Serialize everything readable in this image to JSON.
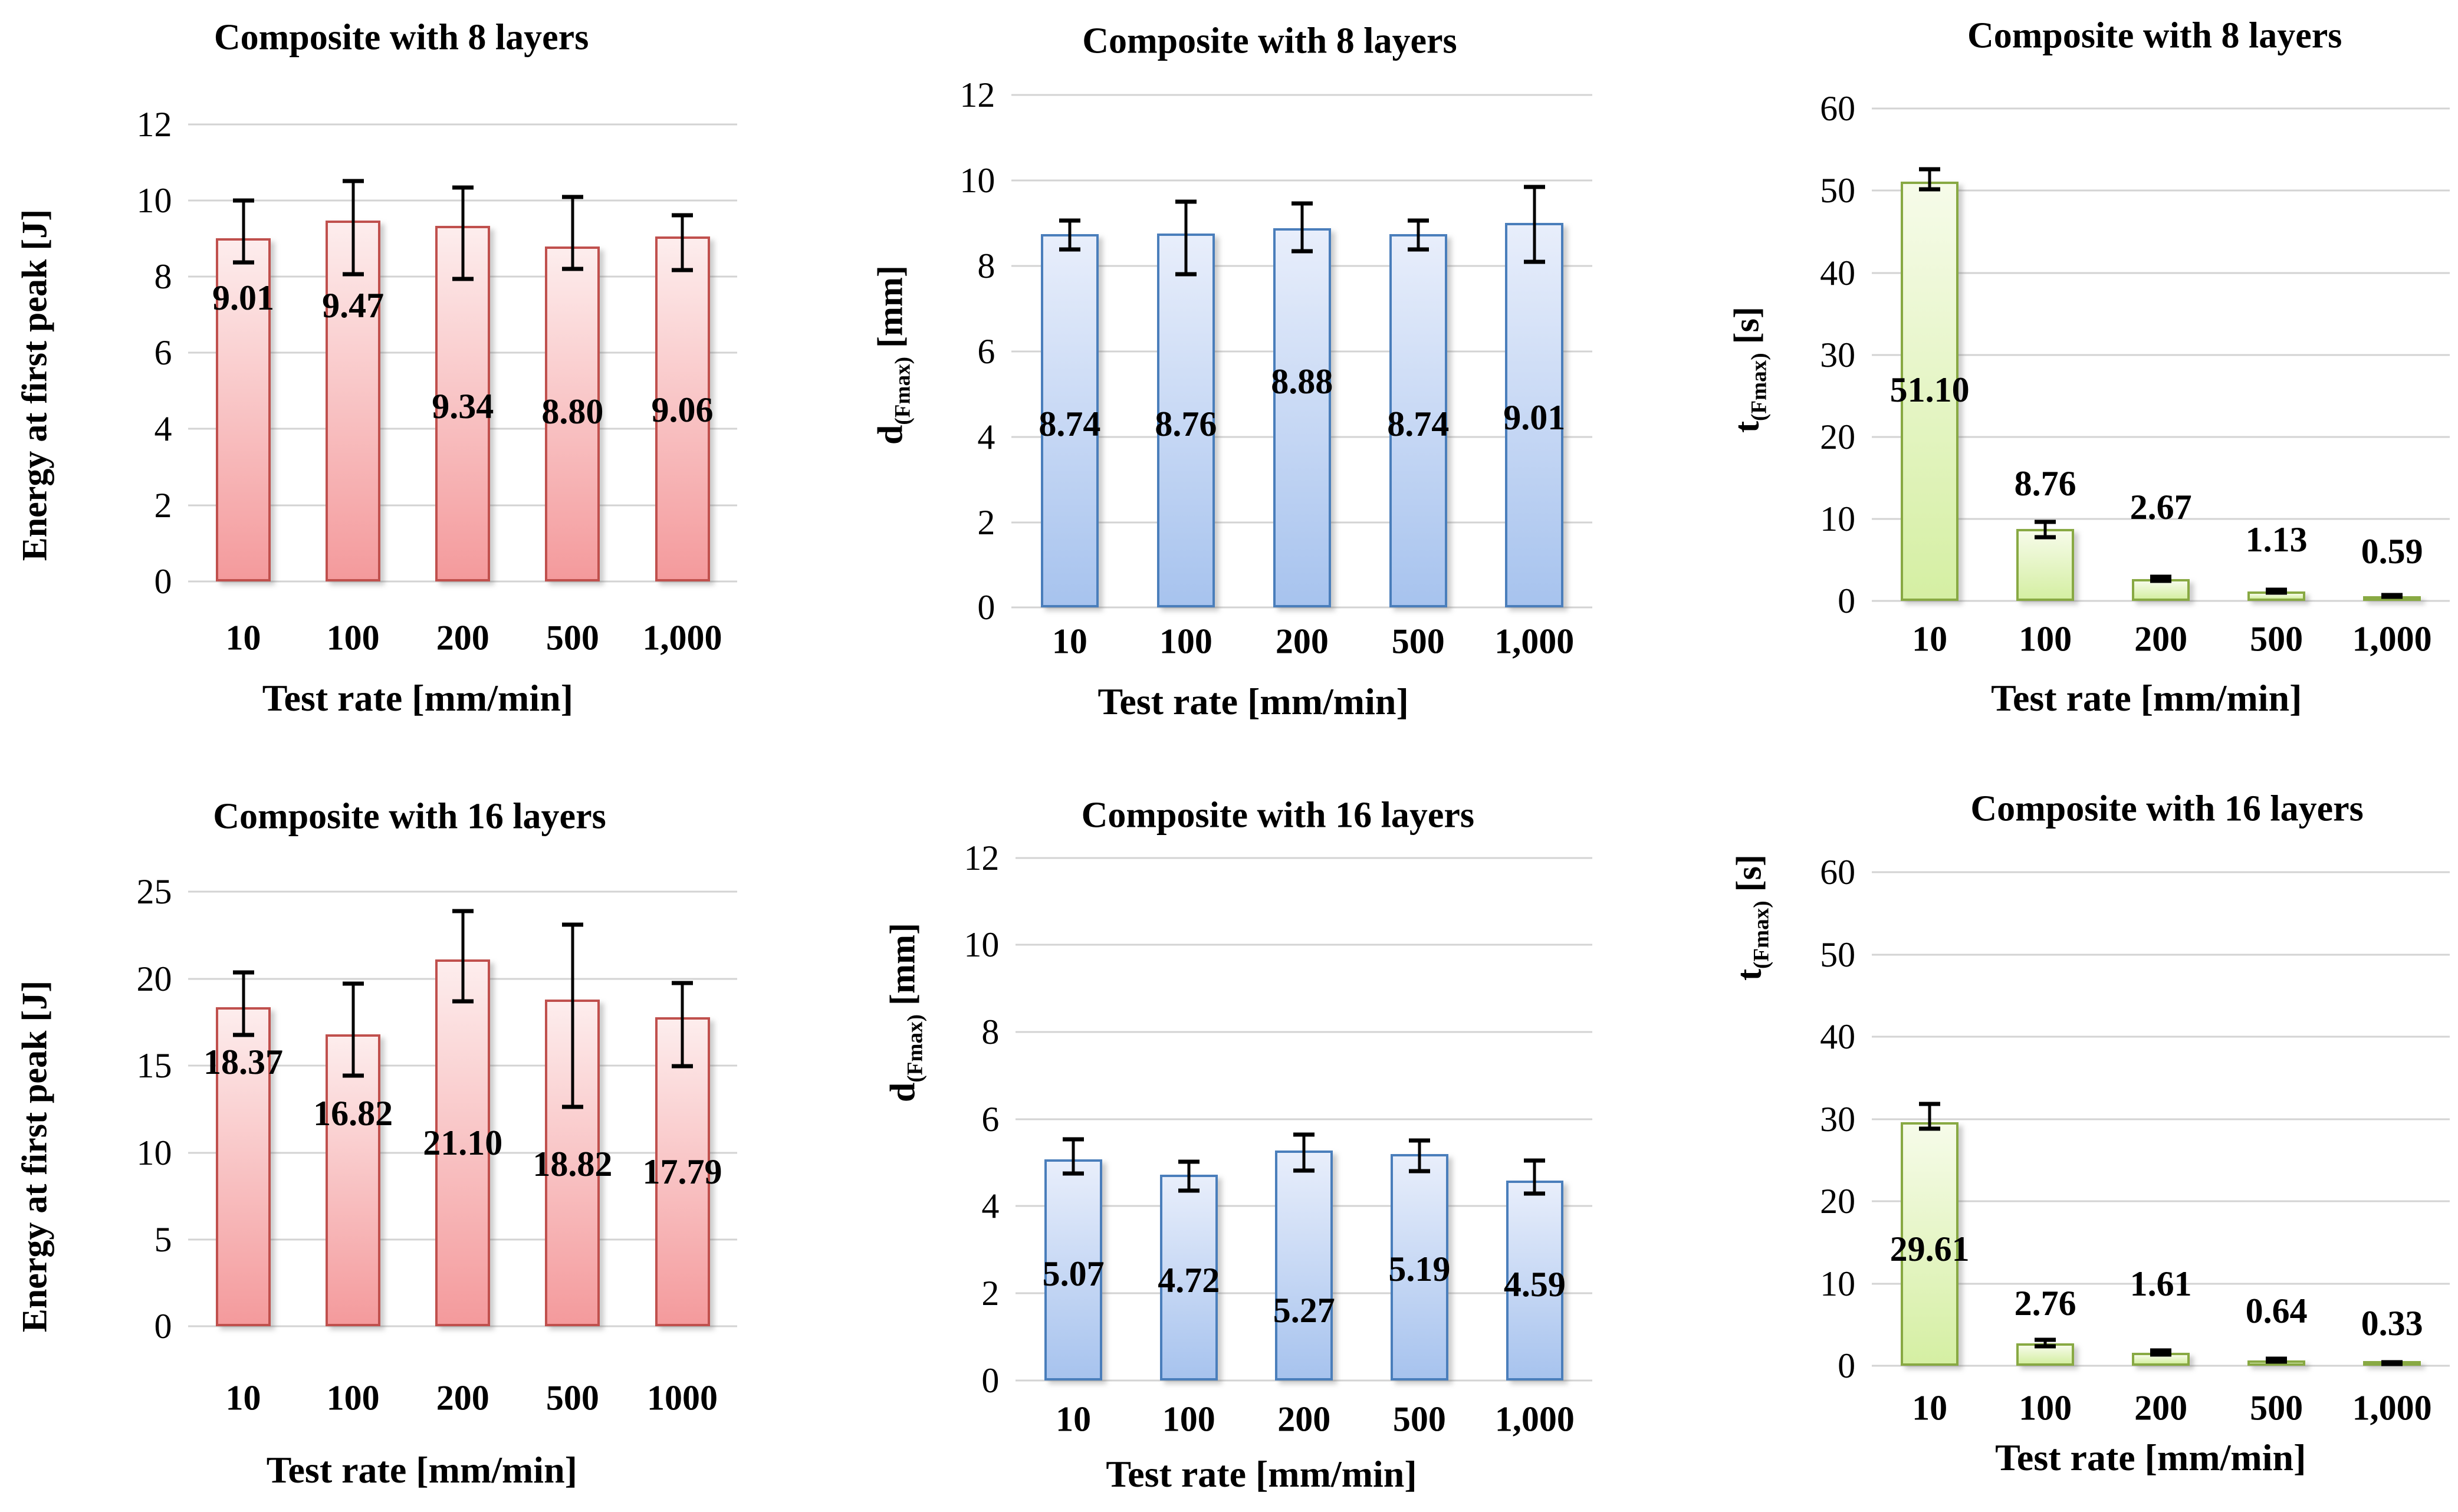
{
  "figure": {
    "background": "#ffffff",
    "grid_color": "#d3d3d3",
    "error_bar_color": "#000000",
    "text_color": "#000000"
  },
  "chart_data": [
    {
      "type": "bar",
      "panel": "top-left",
      "title": "Composite with 8 layers",
      "ylabel_main": "Energy at first peak [J]",
      "ylabel_sub": "",
      "ylabel_unit": "",
      "xlabel": "Test rate [mm/min]",
      "categories": [
        "10",
        "100",
        "200",
        "500",
        "1,000"
      ],
      "values": [
        9.01,
        9.47,
        9.34,
        8.8,
        9.06
      ],
      "value_labels": [
        "9.01",
        "9.47",
        "9.34",
        "8.80",
        "9.06"
      ],
      "err_up": [
        1.0,
        1.05,
        1.0,
        1.29,
        0.55
      ],
      "err_down": [
        0.63,
        1.4,
        1.4,
        0.59,
        0.89
      ],
      "ylim": [
        0,
        12
      ],
      "yticks": [
        "0",
        "2",
        "4",
        "6",
        "8",
        "10",
        "12"
      ],
      "grid": true,
      "bar_color": {
        "border": "#c0504d",
        "top": "#fdeded",
        "bottom": "#f49a9c"
      },
      "label_y": [
        7.45,
        7.25,
        4.6,
        4.45,
        4.5
      ],
      "layout": {
        "plot": {
          "left": 0.23,
          "right": 0.9,
          "top": 0.165,
          "bottom": 0.77
        },
        "title_x": 0.49,
        "title_y": 0.05,
        "ylabel_x": 0.045,
        "ylabel_y": 0.51,
        "xlabel_x": 0.51,
        "xlabel_y": 0.925,
        "xticks_y": 0.845
      }
    },
    {
      "type": "bar",
      "panel": "top-middle",
      "title": "Composite with 8 layers",
      "ylabel_main": "d",
      "ylabel_sub": "(Fmax)",
      "ylabel_unit": " [mm]",
      "xlabel": "Test rate [mm/min]",
      "categories": [
        "10",
        "100",
        "200",
        "500",
        "1,000"
      ],
      "values": [
        8.74,
        8.76,
        8.88,
        8.74,
        9.01
      ],
      "value_labels": [
        "8.74",
        "8.76",
        "8.88",
        "8.74",
        "9.01"
      ],
      "err_up": [
        0.32,
        0.75,
        0.58,
        0.32,
        0.84
      ],
      "err_down": [
        0.35,
        0.95,
        0.53,
        0.35,
        0.91
      ],
      "ylim": [
        0,
        12
      ],
      "yticks": [
        "0",
        "2",
        "4",
        "6",
        "8",
        "10",
        "12"
      ],
      "grid": true,
      "bar_color": {
        "border": "#4a7ebb",
        "top": "#e8eefb",
        "bottom": "#a7c3ee"
      },
      "label_y": [
        4.3,
        4.3,
        5.3,
        4.3,
        4.45
      ],
      "layout": {
        "plot": {
          "left": 0.235,
          "right": 0.944,
          "top": 0.126,
          "bottom": 0.805
        },
        "title_x": 0.55,
        "title_y": 0.055,
        "ylabel_x": 0.09,
        "ylabel_y": 0.47,
        "xlabel_x": 0.53,
        "xlabel_y": 0.93,
        "xticks_y": 0.85
      }
    },
    {
      "type": "bar",
      "panel": "top-right",
      "title": "Composite with 8 layers",
      "ylabel_main": "t",
      "ylabel_sub": "(Fmax)",
      "ylabel_unit": " [s]",
      "xlabel": "Test rate [mm/min]",
      "categories": [
        "10",
        "100",
        "200",
        "500",
        "1,000"
      ],
      "values": [
        51.1,
        8.76,
        2.67,
        1.13,
        0.59
      ],
      "value_labels": [
        "51.10",
        "8.76",
        "2.67",
        "1.13",
        "0.59"
      ],
      "err_up": [
        1.5,
        0.9,
        0.25,
        0.2,
        0.12
      ],
      "err_down": [
        0.9,
        1.0,
        0.2,
        0.15,
        0.1
      ],
      "ylim": [
        0,
        60
      ],
      "yticks": [
        "0",
        "10",
        "20",
        "30",
        "40",
        "50",
        "60"
      ],
      "grid": true,
      "bar_color": {
        "border": "#88a943",
        "top": "#f6fbe9",
        "bottom": "#d5efa3"
      },
      "label_y": [
        25.7,
        14.3,
        11.4,
        7.5,
        6.0
      ],
      "layout": {
        "plot": {
          "left": 0.285,
          "right": 0.99,
          "top": 0.144,
          "bottom": 0.796
        },
        "title_x": 0.63,
        "title_y": 0.048,
        "ylabel_x": 0.135,
        "ylabel_y": 0.49,
        "xlabel_x": 0.62,
        "xlabel_y": 0.925,
        "xticks_y": 0.847
      }
    },
    {
      "type": "bar",
      "panel": "bottom-left",
      "title": "Composite with 16 layers",
      "ylabel_main": "Energy at first peak [J]",
      "ylabel_sub": "",
      "ylabel_unit": "",
      "xlabel": "Test rate [mm/min]",
      "categories": [
        "10",
        "100",
        "200",
        "500",
        "1000"
      ],
      "values": [
        18.37,
        16.82,
        21.1,
        18.82,
        17.79
      ],
      "value_labels": [
        "18.37",
        "16.82",
        "21.10",
        "18.82",
        "17.79"
      ],
      "err_up": [
        2.0,
        2.9,
        2.8,
        4.3,
        1.95
      ],
      "err_down": [
        1.6,
        2.4,
        2.4,
        6.2,
        2.8
      ],
      "ylim": [
        0,
        25
      ],
      "yticks": [
        "0",
        "5",
        "10",
        "15",
        "20",
        "25"
      ],
      "grid": true,
      "bar_color": {
        "border": "#c0504d",
        "top": "#fdeded",
        "bottom": "#f49a9c"
      },
      "label_y": [
        15.2,
        12.25,
        10.55,
        9.35,
        8.9
      ],
      "layout": {
        "plot": {
          "left": 0.23,
          "right": 0.9,
          "top": 0.181,
          "bottom": 0.755
        },
        "title_x": 0.5,
        "title_y": 0.082,
        "ylabel_x": 0.045,
        "ylabel_y": 0.53,
        "xlabel_x": 0.515,
        "xlabel_y": 0.945,
        "xticks_y": 0.85
      }
    },
    {
      "type": "bar",
      "panel": "bottom-middle",
      "title": "Composite with 16 layers",
      "ylabel_main": "d",
      "ylabel_sub": "(Fmax)",
      "ylabel_unit": " [mm]",
      "xlabel": "Test rate [mm/min]",
      "categories": [
        "10",
        "100",
        "200",
        "500",
        "1,000"
      ],
      "values": [
        5.07,
        4.72,
        5.27,
        5.19,
        4.59
      ],
      "value_labels": [
        "5.07",
        "4.72",
        "5.27",
        "5.19",
        "4.59"
      ],
      "err_up": [
        0.46,
        0.3,
        0.37,
        0.32,
        0.46
      ],
      "err_down": [
        0.32,
        0.37,
        0.45,
        0.39,
        0.3
      ],
      "ylim": [
        0,
        12
      ],
      "yticks": [
        "0",
        "2",
        "4",
        "6",
        "8",
        "10",
        "12"
      ],
      "grid": true,
      "bar_color": {
        "border": "#4a7ebb",
        "top": "#e8eefb",
        "bottom": "#a7c3ee"
      },
      "label_y": [
        2.45,
        2.3,
        1.6,
        2.55,
        2.2
      ],
      "layout": {
        "plot": {
          "left": 0.24,
          "right": 0.944,
          "top": 0.136,
          "bottom": 0.826
        },
        "title_x": 0.56,
        "title_y": 0.08,
        "ylabel_x": 0.105,
        "ylabel_y": 0.34,
        "xlabel_x": 0.54,
        "xlabel_y": 0.95,
        "xticks_y": 0.878
      }
    },
    {
      "type": "bar",
      "panel": "bottom-right",
      "title": "Composite with 16 layers",
      "ylabel_main": "t",
      "ylabel_sub": "(Fmax)",
      "ylabel_unit": " [s]",
      "xlabel": "Test rate [mm/min]",
      "categories": [
        "10",
        "100",
        "200",
        "500",
        "1,000"
      ],
      "values": [
        29.61,
        2.76,
        1.61,
        0.64,
        0.33
      ],
      "value_labels": [
        "29.61",
        "2.76",
        "1.61",
        "0.64",
        "0.33"
      ],
      "err_up": [
        2.2,
        0.4,
        0.3,
        0.2,
        0.12
      ],
      "err_down": [
        0.8,
        0.4,
        0.25,
        0.15,
        0.1
      ],
      "ylim": [
        0,
        60
      ],
      "yticks": [
        "0",
        "10",
        "20",
        "30",
        "40",
        "50",
        "60"
      ],
      "grid": true,
      "bar_color": {
        "border": "#88a943",
        "top": "#f6fbe9",
        "bottom": "#d5efa3"
      },
      "label_y": [
        14.2,
        7.6,
        10.0,
        6.7,
        5.2
      ],
      "layout": {
        "plot": {
          "left": 0.285,
          "right": 0.99,
          "top": 0.155,
          "bottom": 0.807
        },
        "title_x": 0.645,
        "title_y": 0.072,
        "ylabel_x": 0.138,
        "ylabel_y": 0.215,
        "xlabel_x": 0.625,
        "xlabel_y": 0.928,
        "xticks_y": 0.863
      }
    }
  ]
}
